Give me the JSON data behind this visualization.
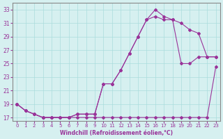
{
  "xlabel": "Windchill (Refroidissement éolien,°C)",
  "bg_color": "#d6f0f0",
  "line_color": "#993399",
  "grid_color": "#aadddd",
  "x_ticks": [
    0,
    1,
    2,
    3,
    4,
    5,
    6,
    7,
    8,
    9,
    10,
    11,
    12,
    13,
    14,
    15,
    16,
    17,
    18,
    19,
    20,
    21,
    22,
    23
  ],
  "y_ticks": [
    17,
    19,
    21,
    23,
    25,
    27,
    29,
    31,
    33
  ],
  "xlim": [
    -0.5,
    23.5
  ],
  "ylim": [
    16.5,
    34
  ],
  "line1_x": [
    0,
    1,
    2,
    3,
    4,
    5,
    6,
    7,
    8,
    9,
    10,
    11,
    12,
    13,
    14,
    15,
    16,
    17,
    18,
    19,
    20,
    21,
    22,
    23
  ],
  "line1_y": [
    19,
    18,
    17.5,
    17,
    17,
    17,
    17,
    17,
    17,
    17,
    17,
    17,
    17,
    17,
    17,
    17,
    17,
    17,
    17,
    17,
    17,
    17,
    17,
    24.5
  ],
  "line2_x": [
    0,
    1,
    2,
    3,
    4,
    5,
    6,
    7,
    8,
    9,
    10,
    11,
    12,
    13,
    14,
    15,
    16,
    17,
    18,
    19,
    20,
    21,
    22,
    23
  ],
  "line2_y": [
    19,
    18,
    17.5,
    17,
    17,
    17,
    17,
    17.5,
    17.5,
    17.5,
    22,
    22,
    24,
    26.5,
    29,
    31.5,
    32,
    31.5,
    31.5,
    25,
    25,
    26,
    26,
    26
  ],
  "line3_x": [
    0,
    1,
    2,
    3,
    4,
    5,
    6,
    7,
    8,
    9,
    10,
    11,
    12,
    13,
    14,
    15,
    16,
    17,
    18,
    19,
    20,
    21,
    22,
    23
  ],
  "line3_y": [
    19,
    18,
    17.5,
    17,
    17,
    17,
    17,
    17.5,
    17.5,
    17.5,
    22,
    22,
    24,
    26.5,
    29,
    31.5,
    33,
    32,
    31.5,
    31,
    30,
    29.5,
    26,
    26
  ]
}
